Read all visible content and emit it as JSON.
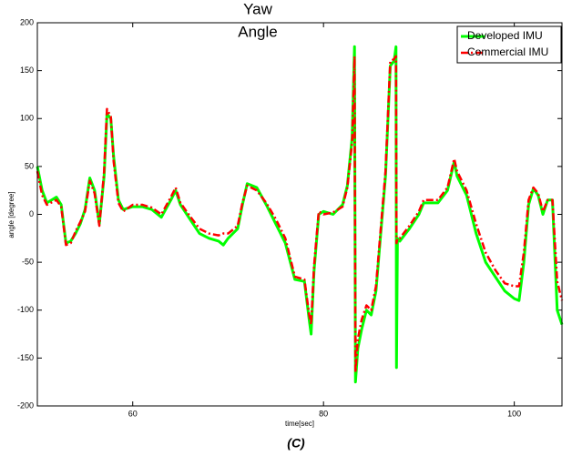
{
  "chart_data": {
    "type": "line",
    "title": [
      "Yaw",
      "Angle"
    ],
    "xlabel": "time[sec]",
    "ylabel": "angle [degree]",
    "caption": "(C)",
    "xlim": [
      50,
      105
    ],
    "ylim": [
      -200,
      200
    ],
    "xticks": [
      60,
      80,
      100
    ],
    "yticks": [
      -200,
      -150,
      -100,
      -50,
      0,
      50,
      100,
      150,
      200
    ],
    "grid": false,
    "legend": "upper right",
    "x": [
      50,
      50.5,
      51,
      52,
      52.5,
      53,
      53.5,
      54,
      54.5,
      55,
      55.5,
      56,
      56.5,
      57,
      57.3,
      57.7,
      58,
      58.5,
      59,
      60,
      61,
      62,
      63,
      64,
      64.5,
      65,
      66,
      67,
      68,
      69,
      69.5,
      70,
      71,
      71.5,
      72,
      73,
      74,
      75,
      76,
      77,
      78,
      78.5,
      78.7,
      79,
      79.5,
      80,
      81,
      82,
      82.5,
      83,
      83.25,
      83.35,
      83.6,
      84,
      84.5,
      85,
      85.5,
      86,
      86.5,
      87,
      87.4,
      87.6,
      87.65,
      87.75,
      88,
      89,
      90,
      90.5,
      91,
      92,
      93,
      93.7,
      94,
      95,
      96,
      97,
      98,
      99,
      100,
      100.5,
      101,
      101.5,
      102,
      102.5,
      103,
      103.5,
      104,
      104.5,
      105
    ],
    "series": [
      {
        "name": "Developed IMU",
        "color": "#00ff00",
        "linestyle": "solid",
        "values": [
          50,
          25,
          12,
          18,
          10,
          -30,
          -28,
          -20,
          -10,
          5,
          38,
          25,
          -10,
          40,
          105,
          100,
          60,
          15,
          5,
          8,
          8,
          5,
          -3,
          15,
          25,
          10,
          -5,
          -20,
          -25,
          -28,
          -32,
          -25,
          -15,
          10,
          32,
          28,
          10,
          -10,
          -30,
          -68,
          -70,
          -110,
          -125,
          -60,
          0,
          3,
          0,
          10,
          30,
          80,
          175,
          -175,
          -140,
          -120,
          -100,
          -105,
          -80,
          -20,
          40,
          155,
          160,
          175,
          -160,
          -25,
          -28,
          -15,
          0,
          12,
          12,
          12,
          25,
          55,
          40,
          20,
          -20,
          -50,
          -65,
          -80,
          -88,
          -90,
          -50,
          10,
          27,
          20,
          0,
          15,
          15,
          -100,
          -115
        ]
      },
      {
        "name": "Commercial IMU",
        "color": "#ff0000",
        "linestyle": "dashdot",
        "values": [
          45,
          20,
          10,
          15,
          8,
          -32,
          -30,
          -18,
          -8,
          3,
          35,
          22,
          -12,
          45,
          110,
          102,
          55,
          12,
          3,
          10,
          10,
          7,
          0,
          18,
          28,
          12,
          -2,
          -15,
          -20,
          -22,
          -20,
          -20,
          -12,
          12,
          30,
          25,
          12,
          -5,
          -25,
          -65,
          -68,
          -105,
          -115,
          -55,
          3,
          0,
          2,
          8,
          28,
          75,
          165,
          -165,
          -130,
          -110,
          -95,
          -100,
          -75,
          -15,
          45,
          160,
          162,
          165,
          -30,
          -25,
          -25,
          -12,
          3,
          15,
          15,
          15,
          28,
          58,
          45,
          25,
          -10,
          -40,
          -58,
          -72,
          -75,
          -75,
          -40,
          15,
          28,
          22,
          3,
          15,
          15,
          -70,
          -90
        ]
      }
    ]
  }
}
